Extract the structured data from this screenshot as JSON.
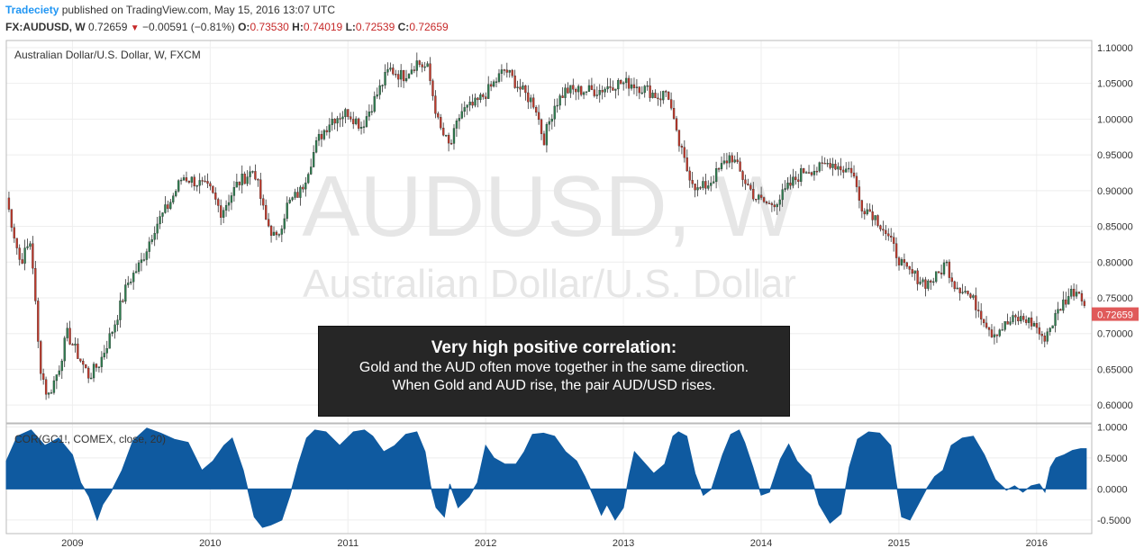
{
  "header": {
    "brand": "Tradeciety",
    "published": " published on TradingView.com, May 15, 2016 13:07 UTC",
    "symbol": "FX:AUDUSD, W",
    "last": "0.72659",
    "change": "−0.00591 (−0.81%)",
    "o_label": "O:",
    "o_value": "0.73530",
    "h_label": "H:",
    "h_value": "0.74019",
    "l_label": "L:",
    "l_value": "0.72539",
    "c_label": "C:",
    "c_value": "0.72659"
  },
  "callout": {
    "title": "Very high positive correlation:",
    "body": "Gold and the AUD often move together in the same direction. When Gold and AUD rise, the pair AUD/USD rises."
  },
  "colors": {
    "up": "#2e7d4f",
    "down": "#c0392b",
    "wick": "#333333",
    "area": "#0f5aa0",
    "price_tag": "#e05a5a",
    "grid": "#eeeeee",
    "watermark": "#e6e6e6"
  },
  "chart_data": [
    {
      "type": "candlestick",
      "title": "Australian Dollar/U.S. Dollar, W, FXCM",
      "watermark": {
        "symbol": "AUDUSD, W",
        "name": "Australian Dollar/U.S. Dollar"
      },
      "x_ticks": [
        "2009",
        "2010",
        "2011",
        "2012",
        "2013",
        "2014",
        "2015",
        "2016"
      ],
      "x_range": [
        2008.52,
        2016.4
      ],
      "y_ticks": [
        "1.10000",
        "1.05000",
        "1.00000",
        "0.95000",
        "0.90000",
        "0.85000",
        "0.80000",
        "0.75000",
        "0.70000",
        "0.65000",
        "0.60000"
      ],
      "ylim": [
        0.575,
        1.11
      ],
      "last_price": "0.72659",
      "anchors": [
        [
          2008.52,
          0.89
        ],
        [
          2008.62,
          0.8
        ],
        [
          2008.7,
          0.83
        ],
        [
          2008.76,
          0.66
        ],
        [
          2008.82,
          0.61
        ],
        [
          2008.9,
          0.65
        ],
        [
          2008.96,
          0.7
        ],
        [
          2009.04,
          0.67
        ],
        [
          2009.12,
          0.64
        ],
        [
          2009.2,
          0.66
        ],
        [
          2009.3,
          0.71
        ],
        [
          2009.4,
          0.77
        ],
        [
          2009.5,
          0.8
        ],
        [
          2009.6,
          0.85
        ],
        [
          2009.7,
          0.88
        ],
        [
          2009.8,
          0.92
        ],
        [
          2009.92,
          0.91
        ],
        [
          2010.0,
          0.9
        ],
        [
          2010.08,
          0.87
        ],
        [
          2010.2,
          0.91
        ],
        [
          2010.32,
          0.93
        ],
        [
          2010.4,
          0.86
        ],
        [
          2010.48,
          0.83
        ],
        [
          2010.56,
          0.88
        ],
        [
          2010.66,
          0.9
        ],
        [
          2010.78,
          0.97
        ],
        [
          2010.88,
          1.0
        ],
        [
          2011.0,
          1.01
        ],
        [
          2011.1,
          0.99
        ],
        [
          2011.2,
          1.03
        ],
        [
          2011.3,
          1.07
        ],
        [
          2011.4,
          1.06
        ],
        [
          2011.5,
          1.08
        ],
        [
          2011.58,
          1.07
        ],
        [
          2011.66,
          0.99
        ],
        [
          2011.74,
          0.96
        ],
        [
          2011.82,
          1.01
        ],
        [
          2011.92,
          1.02
        ],
        [
          2012.02,
          1.04
        ],
        [
          2012.14,
          1.07
        ],
        [
          2012.26,
          1.04
        ],
        [
          2012.36,
          1.02
        ],
        [
          2012.42,
          0.97
        ],
        [
          2012.5,
          1.02
        ],
        [
          2012.58,
          1.04
        ],
        [
          2012.7,
          1.04
        ],
        [
          2012.82,
          1.04
        ],
        [
          2012.94,
          1.05
        ],
        [
          2013.06,
          1.05
        ],
        [
          2013.18,
          1.04
        ],
        [
          2013.26,
          1.03
        ],
        [
          2013.32,
          1.04
        ],
        [
          2013.38,
          0.98
        ],
        [
          2013.46,
          0.93
        ],
        [
          2013.54,
          0.9
        ],
        [
          2013.62,
          0.91
        ],
        [
          2013.7,
          0.93
        ],
        [
          2013.78,
          0.95
        ],
        [
          2013.86,
          0.92
        ],
        [
          2013.96,
          0.89
        ],
        [
          2014.06,
          0.88
        ],
        [
          2014.14,
          0.89
        ],
        [
          2014.22,
          0.91
        ],
        [
          2014.32,
          0.93
        ],
        [
          2014.42,
          0.93
        ],
        [
          2014.5,
          0.94
        ],
        [
          2014.6,
          0.93
        ],
        [
          2014.66,
          0.93
        ],
        [
          2014.72,
          0.88
        ],
        [
          2014.8,
          0.87
        ],
        [
          2014.88,
          0.85
        ],
        [
          2014.96,
          0.82
        ],
        [
          2015.04,
          0.79
        ],
        [
          2015.12,
          0.78
        ],
        [
          2015.2,
          0.77
        ],
        [
          2015.28,
          0.78
        ],
        [
          2015.34,
          0.8
        ],
        [
          2015.4,
          0.77
        ],
        [
          2015.48,
          0.76
        ],
        [
          2015.56,
          0.74
        ],
        [
          2015.62,
          0.72
        ],
        [
          2015.68,
          0.7
        ],
        [
          2015.76,
          0.71
        ],
        [
          2015.84,
          0.72
        ],
        [
          2015.92,
          0.72
        ],
        [
          2016.0,
          0.71
        ],
        [
          2016.04,
          0.69
        ],
        [
          2016.1,
          0.71
        ],
        [
          2016.18,
          0.74
        ],
        [
          2016.26,
          0.76
        ],
        [
          2016.32,
          0.76
        ],
        [
          2016.36,
          0.73
        ]
      ]
    },
    {
      "type": "area",
      "title": "COR(GC1!, COMEX, close, 20)",
      "y_ticks": [
        "1.0000",
        "0.5000",
        "0.0000",
        "-0.5000"
      ],
      "ylim": [
        -0.72,
        1.05
      ],
      "values_x": [
        2008.52,
        2008.6,
        2008.7,
        2008.8,
        2008.9,
        2009.0,
        2009.06,
        2009.12,
        2009.18,
        2009.22,
        2009.28,
        2009.36,
        2009.44,
        2009.54,
        2009.64,
        2009.74,
        2009.84,
        2009.94,
        2010.02,
        2010.1,
        2010.16,
        2010.24,
        2010.32,
        2010.38,
        2010.44,
        2010.52,
        2010.58,
        2010.64,
        2010.7,
        2010.76,
        2010.84,
        2010.94,
        2011.04,
        2011.12,
        2011.18,
        2011.26,
        2011.34,
        2011.42,
        2011.5,
        2011.56,
        2011.6,
        2011.64,
        2011.7,
        2011.74,
        2011.8,
        2011.88,
        2011.94,
        2012.0,
        2012.06,
        2012.14,
        2012.22,
        2012.28,
        2012.34,
        2012.42,
        2012.5,
        2012.58,
        2012.66,
        2012.72,
        2012.78,
        2012.84,
        2012.88,
        2012.94,
        2013.0,
        2013.04,
        2013.08,
        2013.14,
        2013.22,
        2013.3,
        2013.36,
        2013.4,
        2013.46,
        2013.52,
        2013.58,
        2013.64,
        2013.72,
        2013.78,
        2013.84,
        2013.88,
        2013.94,
        2014.0,
        2014.06,
        2014.14,
        2014.2,
        2014.26,
        2014.32,
        2014.36,
        2014.42,
        2014.5,
        2014.58,
        2014.64,
        2014.7,
        2014.78,
        2014.86,
        2014.94,
        2014.98,
        2015.02,
        2015.08,
        2015.14,
        2015.2,
        2015.26,
        2015.32,
        2015.38,
        2015.46,
        2015.54,
        2015.62,
        2015.7,
        2015.78,
        2015.84,
        2015.9,
        2015.96,
        2016.02,
        2016.06,
        2016.1,
        2016.14,
        2016.2,
        2016.26,
        2016.32,
        2016.36
      ],
      "values": [
        0.45,
        0.85,
        0.95,
        0.7,
        0.82,
        0.55,
        0.1,
        -0.12,
        -0.5,
        -0.25,
        -0.05,
        0.3,
        0.78,
        0.98,
        0.9,
        0.8,
        0.75,
        0.3,
        0.45,
        0.7,
        0.82,
        0.3,
        -0.45,
        -0.62,
        -0.58,
        -0.5,
        -0.1,
        0.4,
        0.82,
        0.95,
        0.92,
        0.7,
        0.92,
        0.95,
        0.85,
        0.6,
        0.7,
        0.88,
        0.92,
        0.6,
        0.05,
        -0.3,
        -0.45,
        0.08,
        -0.3,
        -0.12,
        0.1,
        0.7,
        0.5,
        0.4,
        0.4,
        0.6,
        0.88,
        0.9,
        0.85,
        0.6,
        0.45,
        0.2,
        -0.1,
        -0.42,
        -0.25,
        -0.5,
        -0.3,
        0.2,
        0.6,
        0.45,
        0.25,
        0.4,
        0.85,
        0.92,
        0.85,
        0.25,
        -0.1,
        0.0,
        0.55,
        0.88,
        0.95,
        0.75,
        0.35,
        -0.1,
        -0.05,
        0.48,
        0.72,
        0.45,
        0.3,
        0.22,
        -0.25,
        -0.55,
        -0.4,
        0.35,
        0.8,
        0.92,
        0.9,
        0.7,
        0.1,
        -0.45,
        -0.5,
        -0.25,
        0.0,
        0.2,
        0.3,
        0.7,
        0.82,
        0.85,
        0.55,
        0.15,
        -0.02,
        0.05,
        -0.05,
        0.05,
        0.08,
        -0.05,
        0.35,
        0.5,
        0.55,
        0.62,
        0.65,
        0.65
      ]
    }
  ]
}
